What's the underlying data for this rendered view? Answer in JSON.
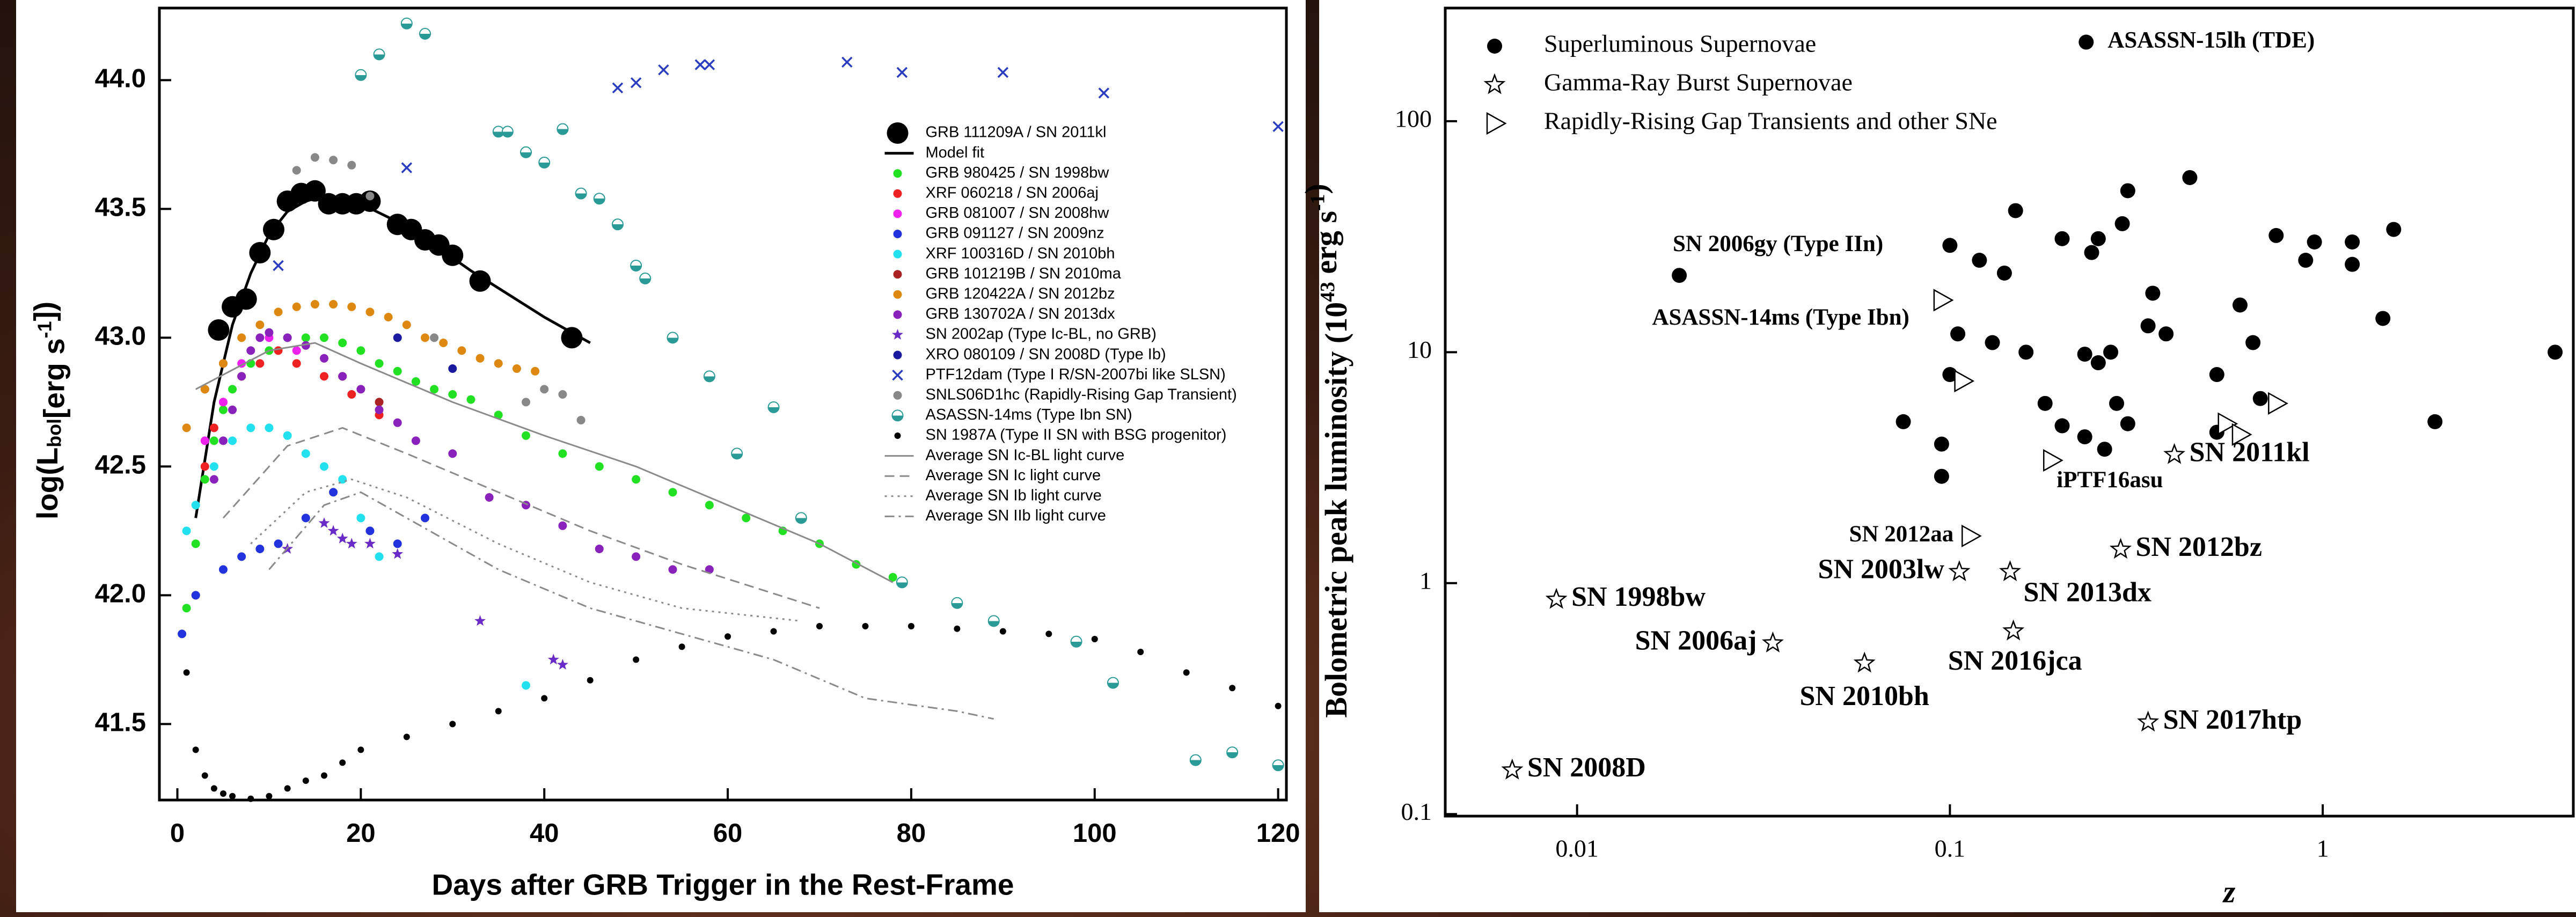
{
  "chart_data": [
    {
      "type": "scatter",
      "x_label": "Days after GRB Trigger in the Rest-Frame",
      "y_label": [
        "log(L",
        "bol",
        "[erg s",
        "-1",
        "])"
      ],
      "xlim": [
        -1.96,
        120.9
      ],
      "ylim": [
        41.205,
        44.28
      ],
      "xticks": [
        0,
        20,
        40,
        60,
        80,
        100,
        120
      ],
      "yticks": [
        41.5,
        {
          "value": 42,
          "label": "42.0"
        },
        42.5,
        {
          "value": 43,
          "label": "43.0"
        },
        43.5,
        {
          "value": 44,
          "label": "44.0"
        }
      ],
      "legend": "upper right",
      "series": [
        {
          "name": "GRB 111209A / SN 2011kl",
          "color": "#000000",
          "marker": "big-circle",
          "x": [
            4.5,
            6,
            7.5,
            9,
            10.5,
            12,
            13.5,
            15,
            16.5,
            18,
            19.5,
            21,
            24,
            25.5,
            27,
            28.5,
            30,
            33,
            43
          ],
          "values": [
            43.03,
            43.12,
            43.15,
            43.33,
            43.42,
            43.53,
            43.56,
            43.57,
            43.52,
            43.52,
            43.52,
            43.53,
            43.44,
            43.42,
            43.38,
            43.36,
            43.32,
            43.22,
            43.0
          ]
        },
        {
          "name": "Model fit",
          "color": "#000000",
          "marker": "line",
          "dash": "solid",
          "x": [
            2,
            4,
            6,
            8,
            10,
            12,
            14,
            16,
            18,
            20,
            24,
            28,
            32,
            36,
            40,
            44,
            45
          ],
          "values": [
            42.3,
            42.75,
            43.05,
            43.25,
            43.4,
            43.49,
            43.53,
            43.55,
            43.54,
            43.52,
            43.45,
            43.36,
            43.26,
            43.17,
            43.08,
            43.0,
            42.98
          ]
        },
        {
          "name": "GRB 980425 / SN 1998bw",
          "color": "#22e022",
          "marker": "circle",
          "x": [
            1,
            2,
            3,
            4,
            5,
            6,
            8,
            10,
            12,
            14,
            16,
            18,
            20,
            22,
            24,
            26,
            28,
            30,
            32,
            35,
            38,
            42,
            46,
            50,
            54,
            58,
            62,
            66,
            70,
            74,
            78
          ],
          "values": [
            41.95,
            42.2,
            42.45,
            42.6,
            42.72,
            42.8,
            42.9,
            42.95,
            43.0,
            43.0,
            43.0,
            42.98,
            42.95,
            42.9,
            42.87,
            42.83,
            42.8,
            42.78,
            42.76,
            42.7,
            42.62,
            42.55,
            42.5,
            42.45,
            42.4,
            42.35,
            42.3,
            42.25,
            42.2,
            42.12,
            42.07
          ]
        },
        {
          "name": "XRF 060218 / SN 2006aj",
          "color": "#ee2222",
          "marker": "circle",
          "x": [
            2,
            3,
            4,
            5,
            7,
            9,
            11,
            13,
            16,
            19,
            22
          ],
          "values": [
            42.0,
            42.5,
            42.65,
            42.75,
            42.85,
            42.9,
            42.95,
            42.9,
            42.85,
            42.78,
            42.7
          ]
        },
        {
          "name": "GRB 081007 / SN 2008hw",
          "color": "#ee22ee",
          "marker": "circle",
          "x": [
            3,
            5,
            7,
            10,
            13
          ],
          "values": [
            42.6,
            42.75,
            42.9,
            43.0,
            42.95
          ]
        },
        {
          "name": "GRB 091127 / SN 2009nz",
          "color": "#2233dd",
          "marker": "circle",
          "x": [
            0.5,
            2,
            5,
            7,
            9,
            11,
            14,
            17,
            21,
            24,
            27
          ],
          "values": [
            41.85,
            42.0,
            42.1,
            42.15,
            42.18,
            42.2,
            42.3,
            42.4,
            42.25,
            42.2,
            42.3
          ]
        },
        {
          "name": "XRF 100316D / SN 2010bh",
          "color": "#22e0ee",
          "marker": "circle",
          "x": [
            1,
            2,
            4,
            6,
            8,
            10,
            12,
            14,
            16,
            18,
            20,
            22,
            38
          ],
          "values": [
            42.25,
            42.35,
            42.5,
            42.6,
            42.65,
            42.65,
            42.62,
            42.55,
            42.5,
            42.45,
            42.3,
            42.15,
            41.65
          ]
        },
        {
          "name": "GRB 101219B / SN 2010ma",
          "color": "#aa2222",
          "marker": "circle",
          "x": [
            3,
            5,
            18,
            22
          ],
          "values": [
            42.8,
            42.9,
            42.85,
            42.75
          ]
        },
        {
          "name": "GRB 120422A / SN 2012bz",
          "color": "#dd8811",
          "marker": "circle",
          "x": [
            1,
            3,
            5,
            7,
            9,
            11,
            13,
            15,
            17,
            19,
            21,
            23,
            25,
            27,
            29,
            31,
            33,
            35,
            37,
            39
          ],
          "values": [
            42.65,
            42.8,
            42.9,
            43.0,
            43.05,
            43.1,
            43.12,
            43.13,
            43.13,
            43.12,
            43.1,
            43.08,
            43.05,
            43.0,
            42.98,
            42.95,
            42.92,
            42.9,
            42.88,
            42.87
          ]
        },
        {
          "name": "GRB 130702A / SN 2013dx",
          "color": "#8822bb",
          "marker": "circle",
          "x": [
            4,
            5,
            6,
            7,
            8,
            9,
            10,
            12,
            14,
            16,
            18,
            20,
            22,
            24,
            26,
            30,
            34,
            38,
            42,
            46,
            50,
            54,
            58
          ],
          "values": [
            42.45,
            42.6,
            42.72,
            42.85,
            42.95,
            43.0,
            43.02,
            43.0,
            42.97,
            42.92,
            42.85,
            42.8,
            42.72,
            42.67,
            42.6,
            42.55,
            42.38,
            42.35,
            42.27,
            42.18,
            42.15,
            42.1,
            42.1
          ]
        },
        {
          "name": "SN 2002ap (Type Ic-BL, no GRB)",
          "color": "#6a2cc8",
          "marker": "star",
          "x": [
            12,
            16,
            17,
            18,
            19,
            21,
            24,
            33,
            41,
            42
          ],
          "values": [
            42.18,
            42.28,
            42.25,
            42.22,
            42.2,
            42.2,
            42.16,
            41.9,
            41.75,
            41.73
          ]
        },
        {
          "name": "XRO 080109 / SN 2008D (Type Ib)",
          "color": "#1a1aa0",
          "marker": "circle",
          "x": [
            24,
            30
          ],
          "values": [
            43.0,
            42.88
          ]
        },
        {
          "name": "PTF12dam (Type I R/SN-2007bi like SLSN)",
          "color": "#2a3cc0",
          "marker": "cross",
          "x": [
            11,
            25,
            48,
            50,
            53,
            57,
            58,
            73,
            79,
            90,
            101,
            120
          ],
          "values": [
            43.28,
            43.66,
            43.97,
            43.99,
            44.04,
            44.06,
            44.06,
            44.07,
            44.03,
            44.03,
            43.95,
            43.82
          ]
        },
        {
          "name": "SNLS06D1hc (Rapidly-Rising Gap Transient)",
          "color": "#888888",
          "marker": "circle",
          "x": [
            13,
            15,
            17,
            19,
            21,
            28,
            38,
            40,
            42,
            44
          ],
          "values": [
            43.65,
            43.7,
            43.69,
            43.67,
            43.55,
            43.0,
            42.75,
            42.8,
            42.78,
            42.68
          ]
        },
        {
          "name": "ASASSN-14ms (Type Ibn SN)",
          "color": "#2a9a96",
          "marker": "half-circle",
          "x": [
            20,
            22,
            25,
            27,
            35,
            36,
            38,
            40,
            42,
            44,
            46,
            48,
            50,
            51,
            54,
            58,
            61,
            65,
            68,
            79,
            85,
            89,
            98,
            102,
            111,
            115,
            120
          ],
          "values": [
            44.02,
            44.1,
            44.22,
            44.18,
            43.8,
            43.8,
            43.72,
            43.68,
            43.81,
            43.56,
            43.54,
            43.44,
            43.28,
            43.23,
            43.0,
            42.85,
            42.55,
            42.73,
            42.3,
            42.05,
            41.97,
            41.9,
            41.82,
            41.66,
            41.36,
            41.39,
            41.34
          ]
        },
        {
          "name": "SN 1987A (Type II SN with BSG progenitor)",
          "color": "#000000",
          "marker": "dot",
          "x": [
            1,
            2,
            3,
            4,
            5,
            6,
            8,
            10,
            12,
            14,
            16,
            18,
            20,
            25,
            30,
            35,
            40,
            45,
            50,
            55,
            60,
            65,
            70,
            75,
            80,
            85,
            90,
            95,
            100,
            105,
            110,
            115,
            120
          ],
          "values": [
            41.7,
            41.4,
            41.3,
            41.25,
            41.23,
            41.22,
            41.21,
            41.22,
            41.25,
            41.28,
            41.3,
            41.35,
            41.4,
            41.45,
            41.5,
            41.55,
            41.6,
            41.67,
            41.75,
            41.8,
            41.84,
            41.86,
            41.88,
            41.88,
            41.88,
            41.87,
            41.86,
            41.85,
            41.83,
            41.78,
            41.7,
            41.64,
            41.57
          ]
        },
        {
          "name": "Average SN Ic-BL light curve",
          "color": "#8a8a8a",
          "marker": "line",
          "dash": "solid",
          "x": [
            2,
            10,
            15,
            20,
            30,
            40,
            50,
            60,
            70,
            78
          ],
          "values": [
            42.8,
            42.95,
            42.98,
            42.9,
            42.75,
            42.62,
            42.5,
            42.35,
            42.2,
            42.05
          ]
        },
        {
          "name": "Average SN Ic light curve",
          "color": "#8a8a8a",
          "marker": "line",
          "dash": "dash",
          "x": [
            5,
            12,
            18,
            25,
            35,
            45,
            55,
            70
          ],
          "values": [
            42.3,
            42.58,
            42.65,
            42.55,
            42.4,
            42.25,
            42.12,
            41.95
          ]
        },
        {
          "name": "Average SN Ib light curve",
          "color": "#8a8a8a",
          "marker": "line",
          "dash": "dot",
          "x": [
            8,
            14,
            19,
            25,
            35,
            45,
            55,
            68
          ],
          "values": [
            42.2,
            42.4,
            42.45,
            42.38,
            42.2,
            42.05,
            41.95,
            41.9
          ]
        },
        {
          "name": "Average SN IIb light curve",
          "color": "#8a8a8a",
          "marker": "line",
          "dash": "dashdot",
          "x": [
            10,
            16,
            20,
            25,
            35,
            45,
            55,
            65,
            75,
            85,
            89
          ],
          "values": [
            42.1,
            42.35,
            42.4,
            42.3,
            42.1,
            41.95,
            41.85,
            41.75,
            41.6,
            41.55,
            41.52
          ]
        }
      ]
    },
    {
      "type": "scatter",
      "x_label": "z",
      "y_label": [
        "Bolometric peak luminosity (10",
        "43",
        " erg s",
        "-1",
        ")"
      ],
      "xscale": "log",
      "yscale": "log",
      "xlim": [
        0.00443,
        4.7
      ],
      "ylim": [
        0.098,
        309
      ],
      "xticks": [
        0.01,
        0.1,
        1
      ],
      "yticks": [
        0.1,
        1,
        10,
        100
      ],
      "legend": "upper left",
      "series": [
        {
          "name": "Superluminous Supernovae",
          "color": "#000000",
          "marker": "filled-circle",
          "x": [
            0.232,
            0.0188,
            0.075,
            0.095,
            0.095,
            0.1,
            0.1,
            0.105,
            0.12,
            0.13,
            0.15,
            0.16,
            0.18,
            0.2,
            0.2,
            0.23,
            0.24,
            0.23,
            0.25,
            0.25,
            0.26,
            0.27,
            0.28,
            0.29,
            0.3,
            0.3,
            0.34,
            0.35,
            0.38,
            0.44,
            0.52,
            0.52,
            0.6,
            0.65,
            0.68,
            0.75,
            0.9,
            0.95,
            1.2,
            1.2,
            1.45,
            1.55,
            2.0,
            0.14,
            4.2
          ],
          "values": [
            220,
            21.5,
            5,
            4,
            2.9,
            29,
            8,
            12,
            25,
            11,
            41,
            10,
            6,
            4.8,
            31,
            4.3,
            27,
            9.8,
            9,
            31,
            3.8,
            10,
            6,
            36,
            50,
            4.9,
            13,
            18,
            12,
            57,
            8,
            4.5,
            16,
            11,
            6.3,
            32,
            25,
            30,
            30,
            24,
            14,
            34,
            5,
            22,
            10
          ],
          "point_labels": [
            "ASASSN-15lh (TDE)",
            "SN 2006gy (Type IIn)",
            null,
            null,
            null,
            null,
            null,
            null,
            null,
            null,
            null,
            null,
            null,
            null,
            null,
            null,
            null,
            null,
            null,
            null,
            null,
            null,
            null,
            null,
            null,
            null,
            null,
            null,
            null,
            null,
            null,
            null,
            null,
            null,
            null,
            null,
            null,
            null,
            null,
            null,
            null,
            null,
            null,
            null,
            null
          ]
        },
        {
          "name": "Gamma-Ray Burst Supernovae",
          "color": "#000000",
          "marker": "open-star",
          "x": [
            0.0067,
            0.0088,
            0.0335,
            0.059,
            0.106,
            0.145,
            0.148,
            0.287,
            0.34,
            0.4
          ],
          "values": [
            0.155,
            0.85,
            0.55,
            0.45,
            1.12,
            1.12,
            0.62,
            1.4,
            0.25,
            3.6
          ],
          "point_labels": [
            "SN 2008D",
            "SN 1998bw",
            "SN 2006aj",
            "SN 2010bh",
            "SN 2003lw",
            "SN 2013dx",
            "SN 2016jca",
            "SN 2012bz",
            "SN 2017htp",
            "SN 2011kl"
          ]
        },
        {
          "name": "Rapidly-Rising Gap Transients and other SNe",
          "color": "#000000",
          "marker": "open-triangle",
          "x": [
            0.095,
            0.113,
            0.187,
            0.108,
            0.55,
            0.6,
            0.75
          ],
          "values": [
            16.8,
            1.6,
            3.4,
            7.5,
            4.9,
            4.4,
            6.0
          ],
          "point_labels": [
            "ASASSN-14ms (Type Ibn)",
            "SN 2012aa",
            "iPTF16asu",
            null,
            null,
            null,
            null
          ]
        }
      ]
    }
  ]
}
